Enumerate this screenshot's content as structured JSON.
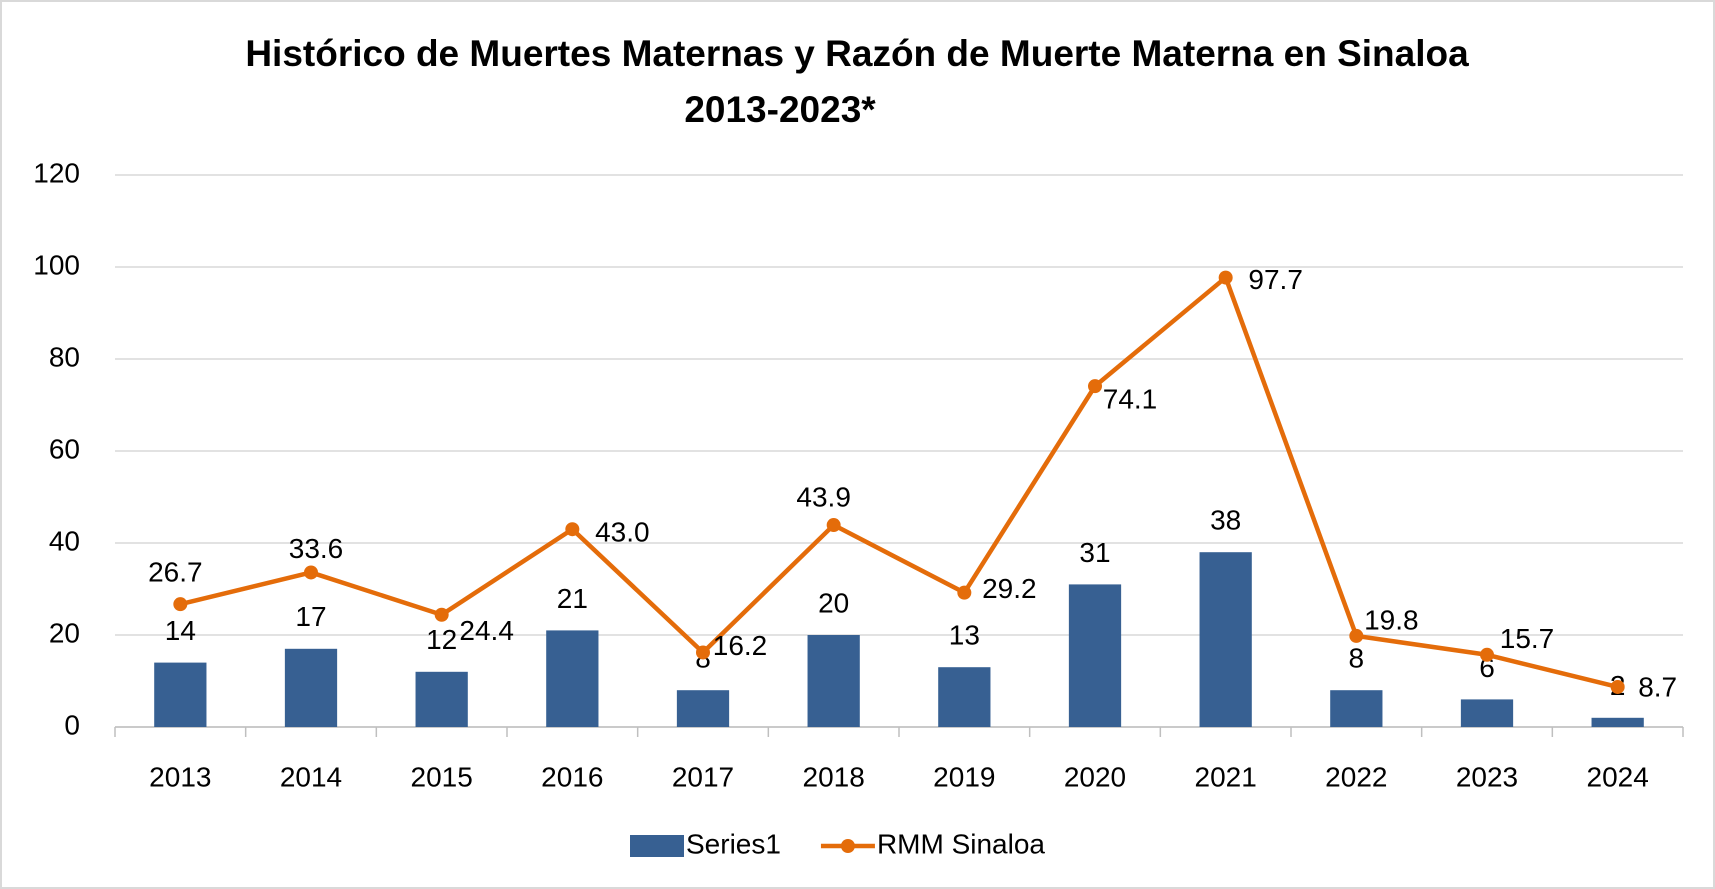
{
  "chart_data": {
    "type": "combo",
    "title": "Histórico de Muertes Maternas y Razón de Muerte Materna en Sinaloa",
    "subtitle": "2013-2023*",
    "categories": [
      "2013",
      "2014",
      "2015",
      "2016",
      "2017",
      "2018",
      "2019",
      "2020",
      "2021",
      "2022",
      "2023",
      "2024"
    ],
    "series": [
      {
        "name": "Series1",
        "type": "bar",
        "color": "#376092",
        "values": [
          14,
          17,
          12,
          21,
          8,
          20,
          13,
          31,
          38,
          8,
          6,
          2
        ]
      },
      {
        "name": "RMM Sinaloa",
        "type": "line",
        "color": "#e46c0a",
        "values": [
          26.7,
          33.6,
          24.4,
          43.0,
          16.2,
          43.9,
          29.2,
          74.1,
          97.7,
          19.8,
          15.7,
          8.7
        ],
        "value_labels": [
          "26.7",
          "33.6",
          "24.4",
          "43.0",
          "16.2",
          "43.9",
          "29.2",
          "74.1",
          "97.7",
          "19.8",
          "15.7",
          "8.7"
        ]
      }
    ],
    "ylim": [
      0,
      120
    ],
    "yticks": [
      0,
      20,
      40,
      60,
      80,
      100,
      120
    ],
    "grid": true,
    "legend": "bottom"
  }
}
